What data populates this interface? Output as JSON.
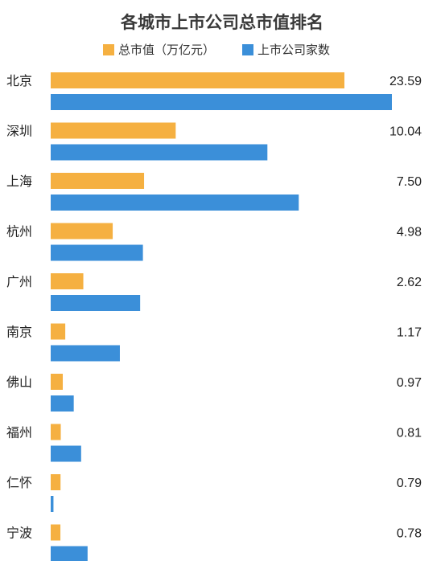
{
  "chart_data": {
    "type": "bar",
    "orientation": "horizontal",
    "title": "各城市上市公司总市值排名",
    "categories": [
      "北京",
      "深圳",
      "上海",
      "杭州",
      "广州",
      "南京",
      "佛山",
      "福州",
      "仁怀",
      "宁波"
    ],
    "series": [
      {
        "name": "总市值（万亿元）",
        "color": "#f5b041",
        "values": [
          23.59,
          10.04,
          7.5,
          4.98,
          2.62,
          1.17,
          0.97,
          0.81,
          0.79,
          0.78
        ],
        "value_labels": [
          "23.59",
          "10.04",
          "7.50",
          "4.98",
          "2.62",
          "1.17",
          "0.97",
          "0.81",
          "0.79",
          "0.78"
        ]
      },
      {
        "name": "上市公司家数",
        "color": "#3b8fd9",
        "values": [
          370,
          235,
          269,
          100,
          97,
          75,
          25,
          33,
          3,
          40
        ]
      }
    ],
    "legend_position": "top",
    "grid": false
  }
}
